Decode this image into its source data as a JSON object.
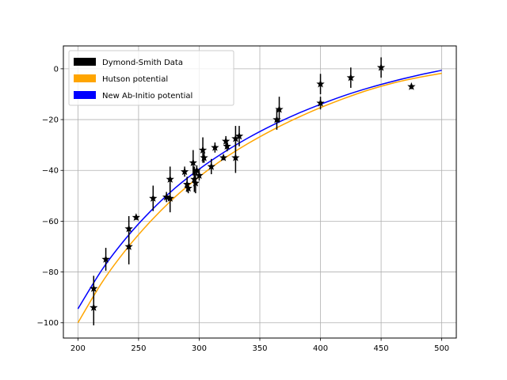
{
  "chart_data": {
    "type": "scatter",
    "title": "",
    "xlabel": "",
    "ylabel": "",
    "xlim": [
      188,
      512
    ],
    "ylim": [
      -106,
      9
    ],
    "grid": true,
    "legend_position": "upper-left",
    "x_ticks": [
      200,
      250,
      300,
      350,
      400,
      450,
      500
    ],
    "x_tick_labels": [
      "200",
      "250",
      "300",
      "350",
      "400",
      "450",
      "500"
    ],
    "y_ticks": [
      0,
      -20,
      -40,
      -60,
      -80,
      -100
    ],
    "y_tick_labels": [
      "0",
      "−20",
      "−40",
      "−60",
      "−80",
      "−100"
    ],
    "legend": [
      {
        "label": "Dymond-Smith Data",
        "color": "#000000"
      },
      {
        "label": "Hutson potential",
        "color": "#ffa500"
      },
      {
        "label": "New Ab-Initio potential",
        "color": "#0000ff"
      }
    ],
    "series": [
      {
        "name": "Hutson potential",
        "kind": "line",
        "color": "#ffa500",
        "x": [
          200,
          220,
          240,
          260,
          280,
          300,
          320,
          340,
          360,
          380,
          400,
          420,
          440,
          460,
          480,
          500
        ],
        "y": [
          -100,
          -84,
          -71,
          -60,
          -50.5,
          -42.5,
          -35.5,
          -29.5,
          -24.2,
          -19.5,
          -15.3,
          -11.6,
          -8.3,
          -5.6,
          -3.5,
          -1.8
        ]
      },
      {
        "name": "New Ab-Initio potential",
        "kind": "line",
        "color": "#0000ff",
        "x": [
          200,
          220,
          240,
          260,
          280,
          300,
          320,
          340,
          360,
          380,
          400,
          420,
          440,
          460,
          480,
          500
        ],
        "y": [
          -94.5,
          -79,
          -66.5,
          -56,
          -47,
          -39.5,
          -33,
          -27.3,
          -22.3,
          -17.9,
          -14,
          -10.5,
          -7.5,
          -4.9,
          -2.6,
          -0.6
        ]
      },
      {
        "name": "Dymond-Smith Data",
        "kind": "errorbar",
        "color": "#000000",
        "marker": "star",
        "points": [
          {
            "x": 213,
            "y": -86.5,
            "err": 5
          },
          {
            "x": 213,
            "y": -94,
            "err": 7
          },
          {
            "x": 223,
            "y": -75,
            "err": 4.5
          },
          {
            "x": 242,
            "y": -63,
            "err": 5
          },
          {
            "x": 242,
            "y": -70,
            "err": 7
          },
          {
            "x": 248,
            "y": -58.5,
            "err": 1
          },
          {
            "x": 262,
            "y": -51,
            "err": 5
          },
          {
            "x": 273,
            "y": -50.5,
            "err": 2
          },
          {
            "x": 276,
            "y": -43.5,
            "err": 5
          },
          {
            "x": 276,
            "y": -51,
            "err": 5.5
          },
          {
            "x": 288,
            "y": -40.5,
            "err": 2
          },
          {
            "x": 290,
            "y": -45.5,
            "err": 3
          },
          {
            "x": 291,
            "y": -47,
            "err": 2
          },
          {
            "x": 295,
            "y": -37,
            "err": 5
          },
          {
            "x": 296,
            "y": -43.5,
            "err": 5
          },
          {
            "x": 297,
            "y": -45,
            "err": 4
          },
          {
            "x": 298,
            "y": -40,
            "err": 2
          },
          {
            "x": 300,
            "y": -42,
            "err": 2
          },
          {
            "x": 303,
            "y": -32,
            "err": 5
          },
          {
            "x": 304,
            "y": -35,
            "err": 2
          },
          {
            "x": 310,
            "y": -38.5,
            "err": 3
          },
          {
            "x": 313,
            "y": -31,
            "err": 2
          },
          {
            "x": 320,
            "y": -35,
            "err": 1
          },
          {
            "x": 322,
            "y": -28.5,
            "err": 2
          },
          {
            "x": 323,
            "y": -30.5,
            "err": 2
          },
          {
            "x": 330,
            "y": -27.5,
            "err": 5
          },
          {
            "x": 330,
            "y": -35,
            "err": 6
          },
          {
            "x": 333,
            "y": -26.5,
            "err": 4
          },
          {
            "x": 364,
            "y": -20,
            "err": 4
          },
          {
            "x": 366,
            "y": -16,
            "err": 5
          },
          {
            "x": 400,
            "y": -6,
            "err": 4
          },
          {
            "x": 400,
            "y": -13.5,
            "err": 2.5
          },
          {
            "x": 425,
            "y": -3.5,
            "err": 4
          },
          {
            "x": 450,
            "y": 0.5,
            "err": 4
          },
          {
            "x": 475,
            "y": -7,
            "err": 1
          }
        ]
      }
    ]
  }
}
